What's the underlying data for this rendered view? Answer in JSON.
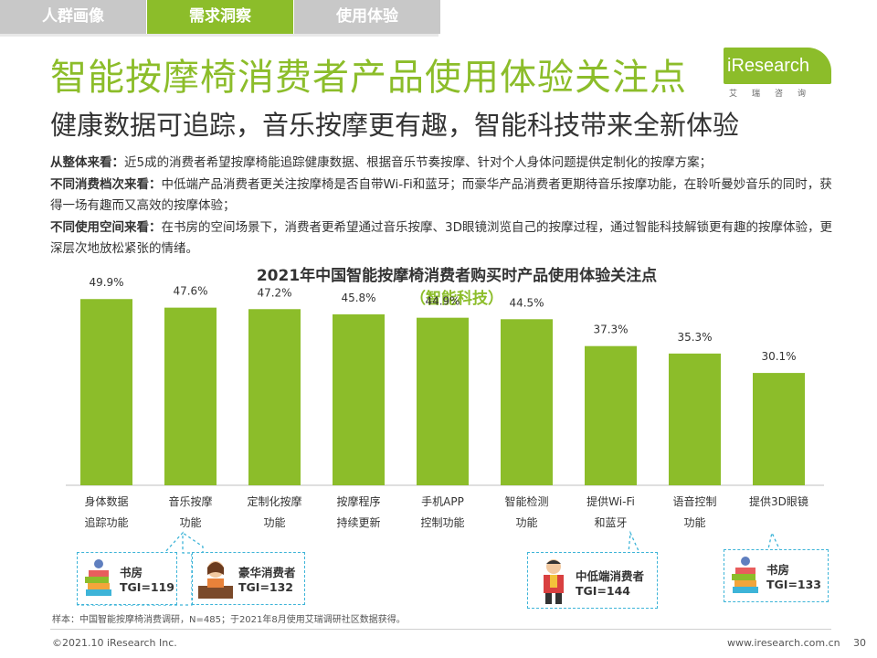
{
  "tabs": [
    {
      "label": "人群画像",
      "active": false
    },
    {
      "label": "需求洞察",
      "active": true
    },
    {
      "label": "使用体验",
      "active": false
    }
  ],
  "page_title": "智能按摩椅消费者产品使用体验关注点",
  "subtitle": "健康数据可追踪，音乐按摩更有趣，智能科技带来全新体验",
  "logo": {
    "name": "iResearch",
    "sub": "艾瑞咨询"
  },
  "paragraphs": [
    {
      "lead": "从整体来看：",
      "text": "近5成的消费者希望按摩椅能追踪健康数据、根据音乐节奏按摩、针对个人身体问题提供定制化的按摩方案；"
    },
    {
      "lead": "不同消费档次来看：",
      "text": "中低端产品消费者更关注按摩椅是否自带Wi-Fi和蓝牙；而豪华产品消费者更期待音乐按摩功能，在聆听曼妙音乐的同时，获得一场有趣而又高效的按摩体验；"
    },
    {
      "lead": "不同使用空间来看：",
      "text": "在书房的空间场景下，消费者更希望通过音乐按摩、3D眼镜浏览自己的按摩过程，通过智能科技解锁更有趣的按摩体验，更深层次地放松紧张的情绪。"
    }
  ],
  "chart_data": {
    "type": "bar",
    "title": "2021年中国智能按摩椅消费者购买时产品使用体验关注点",
    "subtitle": "（智能科技）",
    "categories": [
      [
        "身体数据",
        "追踪功能"
      ],
      [
        "音乐按摩",
        "功能"
      ],
      [
        "定制化按摩",
        "功能"
      ],
      [
        "按摩程序",
        "持续更新"
      ],
      [
        "手机APP",
        "控制功能"
      ],
      [
        "智能检测",
        "功能"
      ],
      [
        "提供Wi-Fi",
        "和蓝牙"
      ],
      [
        "语音控制",
        "功能"
      ],
      [
        "提供3D眼镜",
        ""
      ]
    ],
    "values": [
      49.9,
      47.6,
      47.2,
      45.8,
      44.9,
      44.5,
      37.3,
      35.3,
      30.1
    ],
    "value_labels": [
      "49.9%",
      "47.6%",
      "47.2%",
      "45.8%",
      "44.9%",
      "44.5%",
      "37.3%",
      "35.3%",
      "30.1%"
    ],
    "ylim": [
      0,
      60
    ],
    "bar_color": "#8cbd2a",
    "grid": false
  },
  "callouts": [
    {
      "name": "study-room-1",
      "line1": "书房",
      "line2": "TGI=119"
    },
    {
      "name": "luxury",
      "line1": "豪华消费者",
      "line2": "TGI=132"
    },
    {
      "name": "mid-low",
      "line1": "中低端消费者",
      "line2": "TGI=144"
    },
    {
      "name": "study-room-2",
      "line1": "书房",
      "line2": "TGI=133"
    }
  ],
  "footnote": "样本：中国智能按摩椅消费调研，N=485；于2021年8月使用艾瑞调研社区数据获得。",
  "footer": {
    "copyright": "©2021.10 iResearch Inc.",
    "site": "www.iresearch.com.cn",
    "page": "30"
  },
  "colors": {
    "accent": "#8cbd2a",
    "callout_border": "#3db4d8",
    "tab_inactive": "#c8c8c8"
  }
}
